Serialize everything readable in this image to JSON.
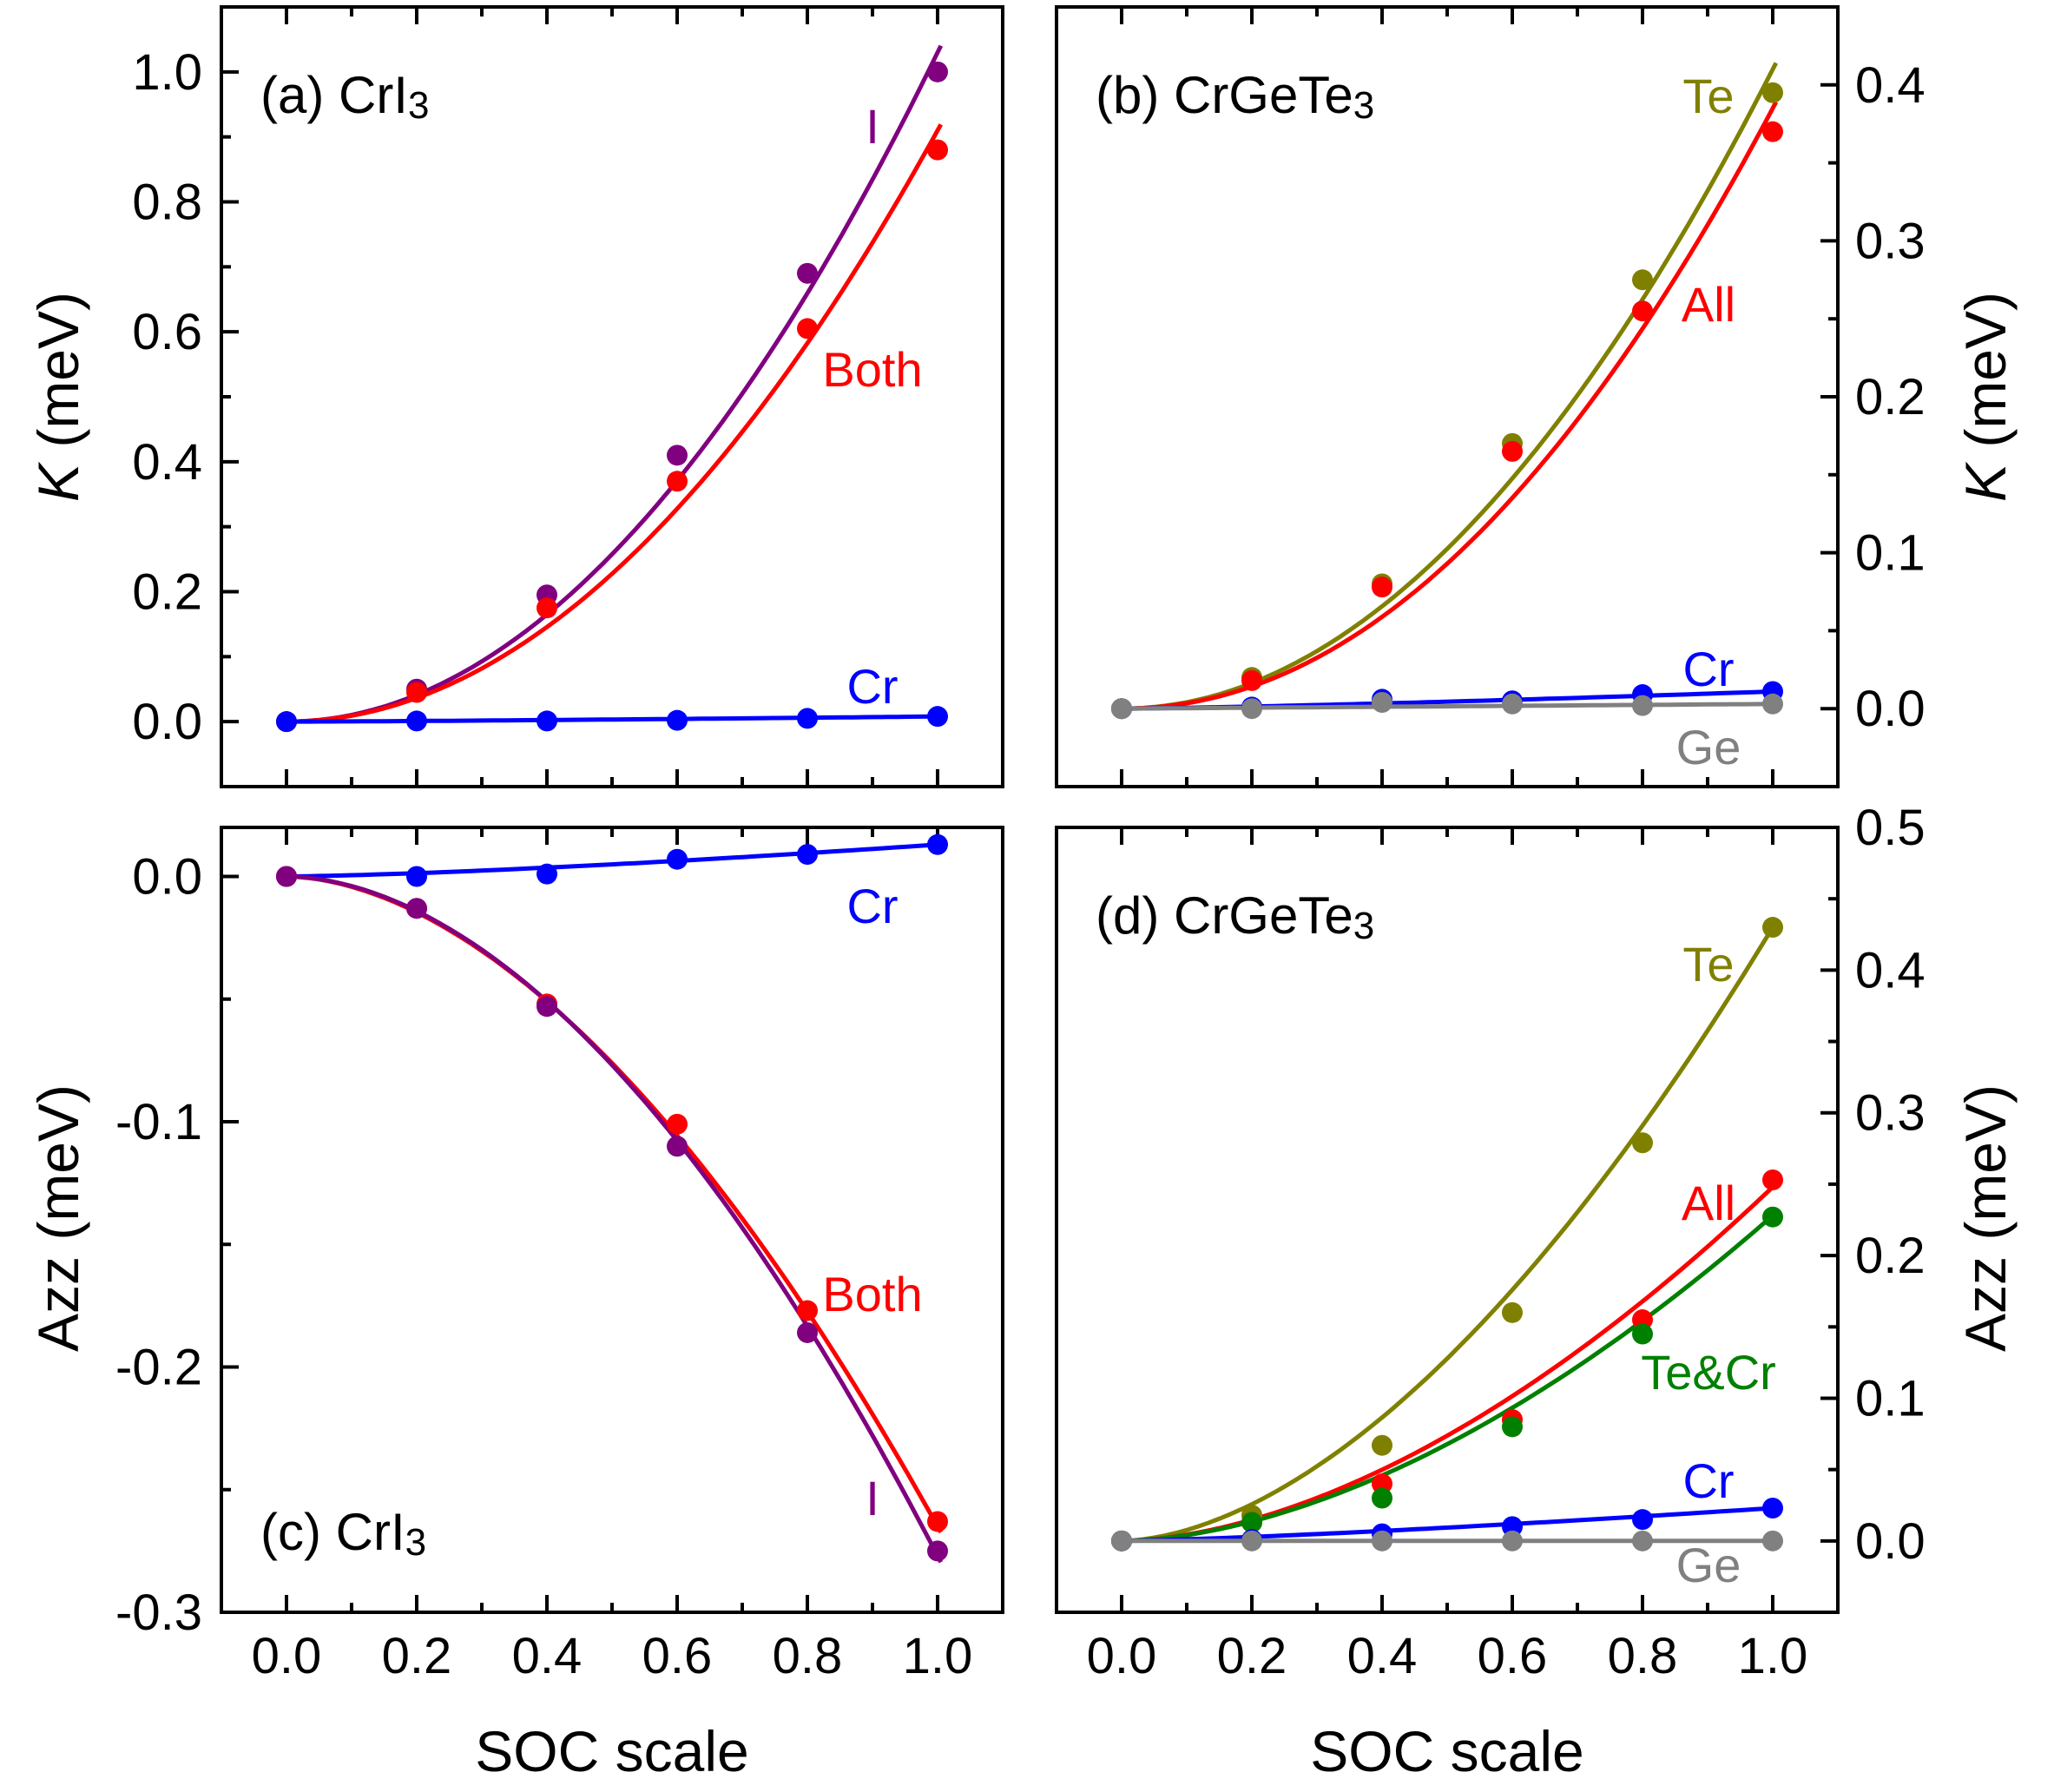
{
  "colors": {
    "purple": "#800080",
    "red": "#ff0000",
    "blue": "#0000ff",
    "olive": "#808000",
    "gray": "#808080",
    "green": "#008000"
  },
  "shared": {
    "xlabel": "SOC scale",
    "xticks": [
      "0.0",
      "0.2",
      "0.4",
      "0.6",
      "0.8",
      "1.0"
    ]
  },
  "chart_data": [
    {
      "id": "a",
      "type": "scatter",
      "title_prefix": "(a) CrI",
      "title_sub": "3",
      "ylabel": "K (meV)",
      "ylabel_italic": "K",
      "ylabel_rest": " (meV)",
      "axis_side": "left",
      "xlim": [
        -0.1,
        1.1
      ],
      "ylim": [
        -0.1,
        1.1
      ],
      "yticks": [
        0.0,
        0.2,
        0.4,
        0.6,
        0.8,
        1.0
      ],
      "ytick_labels": [
        "0.0",
        "0.2",
        "0.4",
        "0.6",
        "0.8",
        "1.0"
      ],
      "x": [
        0.0,
        0.2,
        0.4,
        0.6,
        0.8,
        1.0
      ],
      "series": [
        {
          "name": "I",
          "color": "purple",
          "values": [
            0.0,
            0.05,
            0.195,
            0.41,
            0.69,
            1.0
          ],
          "fit": 1.03,
          "exp": 2
        },
        {
          "name": "Both",
          "color": "red",
          "values": [
            0.0,
            0.045,
            0.175,
            0.37,
            0.605,
            0.88
          ],
          "fit": 0.91,
          "exp": 2
        },
        {
          "name": "Cr",
          "color": "blue",
          "values": [
            0.0,
            0.001,
            0.001,
            0.002,
            0.005,
            0.008
          ],
          "fit": 0.008,
          "exp": 1.3
        }
      ]
    },
    {
      "id": "b",
      "type": "scatter",
      "title_prefix": "(b) CrGeTe",
      "title_sub": "3",
      "ylabel": "K (meV)",
      "ylabel_italic": "K",
      "ylabel_rest": " (meV)",
      "axis_side": "right",
      "xlim": [
        -0.1,
        1.1
      ],
      "ylim": [
        -0.05,
        0.45
      ],
      "yticks": [
        0.0,
        0.1,
        0.2,
        0.3,
        0.4
      ],
      "ytick_labels": [
        "0.0",
        "0.1",
        "0.2",
        "0.3",
        "0.4"
      ],
      "x": [
        0.0,
        0.2,
        0.4,
        0.6,
        0.8,
        1.0
      ],
      "series": [
        {
          "name": "Te",
          "color": "olive",
          "values": [
            0.0,
            0.02,
            0.08,
            0.17,
            0.275,
            0.395
          ],
          "fit": 0.41,
          "exp": 2
        },
        {
          "name": "All",
          "color": "red",
          "values": [
            0.0,
            0.018,
            0.078,
            0.165,
            0.255,
            0.37
          ],
          "fit": 0.385,
          "exp": 2.05
        },
        {
          "name": "Cr",
          "color": "blue",
          "values": [
            0.0,
            0.001,
            0.006,
            0.005,
            0.009,
            0.011
          ],
          "fit": 0.011,
          "exp": 1.3
        },
        {
          "name": "Ge",
          "color": "gray",
          "values": [
            0.0,
            0.0,
            0.004,
            0.003,
            0.002,
            0.003
          ],
          "fit": 0.003,
          "exp": 1
        }
      ]
    },
    {
      "id": "c",
      "type": "scatter",
      "title_prefix": "(c) CrI",
      "title_sub": "3",
      "ylabel": "Azz (meV)",
      "ylabel_italic": "",
      "ylabel_rest": "Azz (meV)",
      "axis_side": "left",
      "xlim": [
        -0.1,
        1.1
      ],
      "ylim": [
        -0.3,
        0.02
      ],
      "yticks": [
        0.0,
        -0.1,
        -0.2,
        -0.3
      ],
      "ytick_labels": [
        "0.0",
        "-0.1",
        "-0.2",
        "-0.3"
      ],
      "x": [
        0.0,
        0.2,
        0.4,
        0.6,
        0.8,
        1.0
      ],
      "series": [
        {
          "name": "Cr",
          "color": "blue",
          "values": [
            0.0,
            0.0,
            0.001,
            0.007,
            0.009,
            0.013
          ],
          "fit": 0.013,
          "exp": 1.4
        },
        {
          "name": "Both",
          "color": "red",
          "values": [
            0.0,
            -0.013,
            -0.052,
            -0.101,
            -0.177,
            -0.263
          ],
          "fit": -0.265,
          "exp": 1.8
        },
        {
          "name": "I",
          "color": "purple",
          "values": [
            0.0,
            -0.013,
            -0.053,
            -0.11,
            -0.186,
            -0.275
          ],
          "fit": -0.277,
          "exp": 1.85
        }
      ]
    },
    {
      "id": "d",
      "type": "scatter",
      "title_prefix": "(d) CrGeTe",
      "title_sub": "3",
      "ylabel": "Azz (meV)",
      "ylabel_italic": "",
      "ylabel_rest": "Azz (meV)",
      "axis_side": "right",
      "xlim": [
        -0.1,
        1.1
      ],
      "ylim": [
        -0.05,
        0.5
      ],
      "yticks": [
        0.0,
        0.1,
        0.2,
        0.3,
        0.4,
        0.5
      ],
      "ytick_labels": [
        "0.0",
        "0.1",
        "0.2",
        "0.3",
        "0.4",
        "0.5"
      ],
      "x": [
        0.0,
        0.2,
        0.4,
        0.6,
        0.8,
        1.0
      ],
      "series": [
        {
          "name": "Te",
          "color": "olive",
          "values": [
            0.0,
            0.018,
            0.067,
            0.16,
            0.279,
            0.43
          ],
          "fit": 0.43,
          "exp": 1.75
        },
        {
          "name": "All",
          "color": "red",
          "values": [
            0.0,
            0.013,
            0.04,
            0.085,
            0.155,
            0.253
          ],
          "fit": 0.248,
          "exp": 1.75
        },
        {
          "name": "Te&Cr",
          "color": "green",
          "values": [
            0.0,
            0.013,
            0.03,
            0.08,
            0.145,
            0.227
          ],
          "fit": 0.228,
          "exp": 1.75
        },
        {
          "name": "Cr",
          "color": "blue",
          "values": [
            0.0,
            0.001,
            0.005,
            0.01,
            0.015,
            0.023
          ],
          "fit": 0.023,
          "exp": 1.3
        },
        {
          "name": "Ge",
          "color": "gray",
          "values": [
            0.0,
            0.0,
            0.0,
            0.0,
            0.0,
            0.0
          ],
          "fit": 0.0,
          "exp": 1
        }
      ]
    }
  ]
}
